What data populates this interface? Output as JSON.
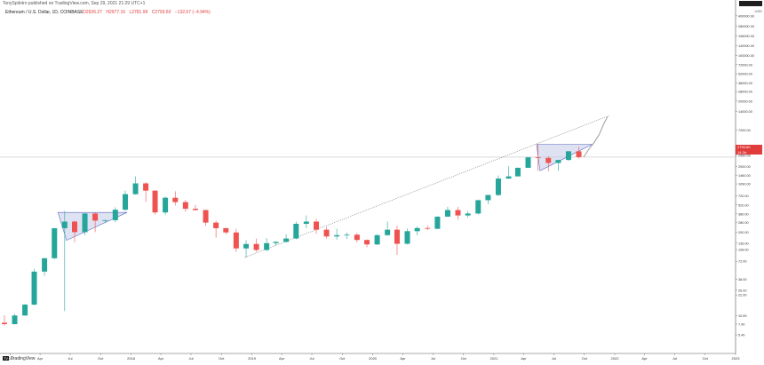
{
  "header": {
    "published_by": "TonySpilotro published on TradingView.com, Sep 29, 2021 21:29 UTC+1",
    "symbol": "Ethereum / U.S. Dollar, 1D, COINBASE",
    "ohlc": [
      "O2926.27",
      "H2977.16",
      "L2781.99",
      "C2793.60",
      "−132.67 (−4.94%)"
    ]
  },
  "badge": "",
  "currency": "USD",
  "price_label": "2793.60",
  "price_sub": "14.3h",
  "footer_logo": "TradingView",
  "colors": {
    "up": "#26a69a",
    "down": "#ef5350",
    "triangle_fill": "#c5cae9",
    "triangle_stroke": "#5c6bc0",
    "trendline": "#555555",
    "projection": "#9e9e9e"
  },
  "chart_data": {
    "type": "line",
    "scale": "log",
    "xlabel": "",
    "ylabel": "USD",
    "ylim": [
      3.4,
      480000
    ],
    "y_ticks": [
      5.4,
      7.9,
      10.59,
      22,
      26,
      38,
      72,
      108,
      136,
      200,
      280,
      380,
      520,
      720,
      1090,
      1460,
      2000,
      2960,
      4200,
      7200,
      14000,
      20000,
      28000,
      38000,
      52000,
      72000,
      100000,
      140000,
      196000,
      280000,
      400000
    ],
    "x_ticks": [
      "2017",
      "Apr",
      "Jul",
      "Oct",
      "2018",
      "Apr",
      "Jul",
      "Oct",
      "2019",
      "Apr",
      "Jul",
      "Oct",
      "2020",
      "Apr",
      "Jul",
      "Oct",
      "2021",
      "Apr",
      "Jul",
      "Oct",
      "2022",
      "Apr",
      "Jul",
      "Oct",
      "2023"
    ],
    "grid": false,
    "series": [
      {
        "type": "candles",
        "points": [
          [
            "2016-12-01",
            8.3,
            10.8,
            7.5,
            7.9
          ],
          [
            "2017-01-01",
            7.9,
            11.3,
            7.8,
            10.7
          ],
          [
            "2017-02-01",
            10.7,
            16.0,
            10.6,
            15.7
          ],
          [
            "2017-03-01",
            15.7,
            55.0,
            15.2,
            50.0
          ],
          [
            "2017-04-01",
            50.0,
            81.0,
            43.0,
            80.0
          ],
          [
            "2017-05-01",
            80.0,
            230.0,
            78.0,
            230.0
          ],
          [
            "2017-06-01",
            230.0,
            420.0,
            12.5,
            290.0
          ],
          [
            "2017-07-01",
            290.0,
            300.0,
            140.0,
            200.0
          ],
          [
            "2017-08-01",
            200.0,
            390.0,
            180.0,
            385.0
          ],
          [
            "2017-09-01",
            385.0,
            400.0,
            200.0,
            300.0
          ],
          [
            "2017-10-01",
            300.0,
            310.0,
            280.0,
            305.0
          ],
          [
            "2017-11-01",
            305.0,
            480.0,
            285.0,
            440.0
          ],
          [
            "2017-12-01",
            440.0,
            860.0,
            420.0,
            760.0
          ],
          [
            "2018-01-01",
            760.0,
            1420.0,
            750.0,
            1110.0
          ],
          [
            "2018-02-01",
            1110.0,
            1160.0,
            580.0,
            860.0
          ],
          [
            "2018-03-01",
            860.0,
            880.0,
            370.0,
            400.0
          ],
          [
            "2018-04-01",
            400.0,
            700.0,
            370.0,
            670.0
          ],
          [
            "2018-05-01",
            670.0,
            840.0,
            510.0,
            575.0
          ],
          [
            "2018-06-01",
            575.0,
            620.0,
            410.0,
            455.0
          ],
          [
            "2018-07-01",
            455.0,
            520.0,
            425.0,
            435.0
          ],
          [
            "2018-08-01",
            435.0,
            440.0,
            250.0,
            280.0
          ],
          [
            "2018-09-01",
            280.0,
            300.0,
            165.0,
            230.0
          ],
          [
            "2018-10-01",
            230.0,
            235.0,
            185.0,
            198.0
          ],
          [
            "2018-11-01",
            198.0,
            225.0,
            100.0,
            113.0
          ],
          [
            "2018-12-01",
            113.0,
            150.0,
            82.0,
            132.0
          ],
          [
            "2019-01-01",
            132.0,
            160.0,
            100.0,
            107.0
          ],
          [
            "2019-02-01",
            107.0,
            162.0,
            102.0,
            136.0
          ],
          [
            "2019-03-01",
            136.0,
            145.0,
            125.0,
            142.0
          ],
          [
            "2019-04-01",
            142.0,
            185.0,
            140.0,
            160.0
          ],
          [
            "2019-05-01",
            160.0,
            290.0,
            155.0,
            268.0
          ],
          [
            "2019-06-01",
            268.0,
            360.0,
            230.0,
            290.0
          ],
          [
            "2019-07-01",
            290.0,
            320.0,
            190.0,
            218.0
          ],
          [
            "2019-08-01",
            218.0,
            240.0,
            160.0,
            172.0
          ],
          [
            "2019-09-01",
            172.0,
            225.0,
            153.0,
            180.0
          ],
          [
            "2019-10-01",
            180.0,
            198.0,
            157.0,
            183.0
          ],
          [
            "2019-11-01",
            183.0,
            195.0,
            140.0,
            152.0
          ],
          [
            "2019-12-01",
            152.0,
            155.0,
            118.0,
            130.0
          ],
          [
            "2020-01-01",
            130.0,
            185.0,
            127.0,
            180.0
          ],
          [
            "2020-02-01",
            180.0,
            290.0,
            177.0,
            218.0
          ],
          [
            "2020-03-01",
            218.0,
            253.0,
            90.0,
            133.0
          ],
          [
            "2020-04-01",
            133.0,
            227.0,
            130.0,
            207.0
          ],
          [
            "2020-05-01",
            207.0,
            245.0,
            180.0,
            231.0
          ],
          [
            "2020-06-01",
            231.0,
            253.0,
            215.0,
            225.0
          ],
          [
            "2020-07-01",
            225.0,
            348.0,
            223.0,
            345.0
          ],
          [
            "2020-08-01",
            345.0,
            490.0,
            343.0,
            435.0
          ],
          [
            "2020-09-01",
            435.0,
            488.0,
            310.0,
            360.0
          ],
          [
            "2020-10-01",
            360.0,
            420.0,
            335.0,
            385.0
          ],
          [
            "2020-11-01",
            385.0,
            630.0,
            372.0,
            615.0
          ],
          [
            "2020-12-01",
            615.0,
            750.0,
            535.0,
            737.0
          ],
          [
            "2021-01-01",
            737.0,
            1470.0,
            714.0,
            1315.0
          ],
          [
            "2021-02-01",
            1315.0,
            2040.0,
            1305.0,
            1420.0
          ],
          [
            "2021-03-01",
            1420.0,
            1945.0,
            1425.0,
            1920.0
          ],
          [
            "2021-04-01",
            1920.0,
            2795.0,
            1920.0,
            2775.0
          ],
          [
            "2021-05-01",
            2775.0,
            4380.0,
            1730.0,
            2715.0
          ],
          [
            "2021-06-01",
            2715.0,
            2890.0,
            1700.0,
            2275.0
          ],
          [
            "2021-07-01",
            2275.0,
            2550.0,
            1720.0,
            2530.0
          ],
          [
            "2021-08-01",
            2530.0,
            3470.0,
            2450.0,
            3430.0
          ],
          [
            "2021-09-01",
            3430.0,
            4030.0,
            2650.0,
            2793.6
          ]
        ]
      },
      {
        "type": "projection",
        "points": [
          [
            "2021-09-29",
            2793.6
          ],
          [
            "2021-10-15",
            3700
          ],
          [
            "2021-10-31",
            4700
          ],
          [
            "2021-11-15",
            6200
          ],
          [
            "2021-11-30",
            9300
          ],
          [
            "2021-12-10",
            11500
          ]
        ]
      }
    ],
    "annotations": [
      {
        "type": "ascending-triangle",
        "points": [
          [
            "2017-05-25",
            400
          ],
          [
            "2017-12-20",
            400
          ],
          [
            "2017-06-20",
            150
          ]
        ]
      },
      {
        "type": "ascending-triangle",
        "points": [
          [
            "2021-05-10",
            4380
          ],
          [
            "2021-10-25",
            4380
          ],
          [
            "2021-05-20",
            1730
          ]
        ]
      },
      {
        "type": "trendline",
        "points": [
          [
            "2018-12-10",
            82
          ],
          [
            "2021-12-15",
            12000
          ]
        ]
      }
    ]
  }
}
